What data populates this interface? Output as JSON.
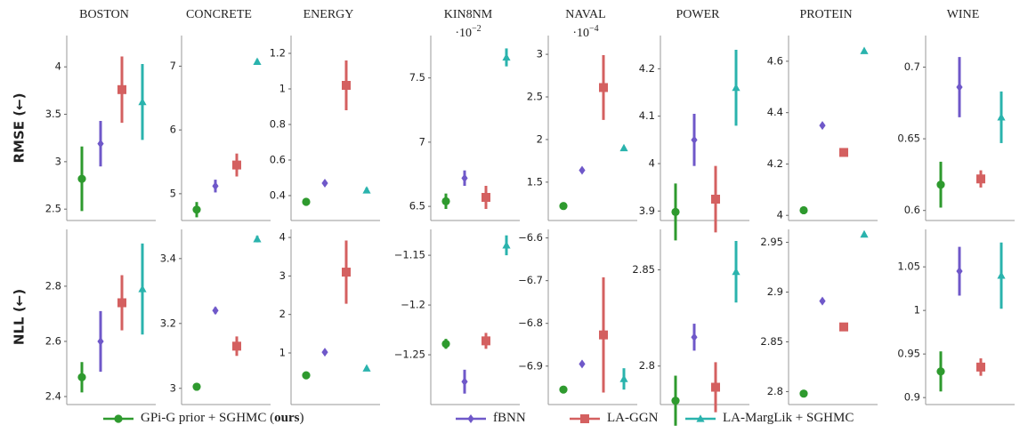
{
  "legend": [
    {
      "name": [
        "GPi-G prior + SGHMC (",
        "ours",
        ")"
      ],
      "bold_part": 1,
      "color": "#2e9a2e",
      "marker": "circle"
    },
    {
      "name": [
        "fBNN"
      ],
      "color": "#6f58c9",
      "marker": "diamond"
    },
    {
      "name": [
        "LA-GGN"
      ],
      "color": "#d46060",
      "marker": "square"
    },
    {
      "name": [
        "LA-MargLik + SGHMC"
      ],
      "color": "#2ab3ad",
      "marker": "triangle"
    }
  ],
  "chart_data": [
    {
      "type": "errorbar",
      "title": "BOSTON",
      "ylabel": "RMSE (←)",
      "values": [
        2.82,
        3.19,
        3.76,
        3.63
      ],
      "errors": [
        0.34,
        0.24,
        0.35,
        0.4
      ],
      "ylim": [
        2.38,
        4.33
      ],
      "yticks": [
        2.5,
        3,
        3.5,
        4
      ]
    },
    {
      "type": "errorbar",
      "title": "CONCRETE",
      "values": [
        4.75,
        5.12,
        5.45,
        7.07
      ],
      "errors": [
        0.12,
        0.1,
        0.18,
        0.04
      ],
      "ylim": [
        4.58,
        7.48
      ],
      "yticks": [
        5,
        6,
        7
      ]
    },
    {
      "type": "errorbar",
      "title": "ENERGY",
      "values": [
        0.365,
        0.47,
        1.02,
        0.43
      ],
      "errors": [
        0.015,
        0.015,
        0.14,
        0.015
      ],
      "ylim": [
        0.26,
        1.3
      ],
      "yticks": [
        0.4,
        0.6,
        0.8,
        1,
        1.2
      ]
    },
    {
      "type": "errorbar",
      "title": "KIN8NM",
      "scale_label": {
        "base": "·10",
        "exponent": "−2"
      },
      "values": [
        6.54,
        6.72,
        6.57,
        7.66
      ],
      "errors": [
        0.06,
        0.06,
        0.09,
        0.07
      ],
      "ylim": [
        6.39,
        7.83
      ],
      "yticks": [
        6.5,
        7,
        7.5
      ]
    },
    {
      "type": "errorbar",
      "title": "NAVAL",
      "scale_label": {
        "base": "·10",
        "exponent": "−4"
      },
      "values": [
        1.22,
        1.64,
        2.61,
        1.9
      ],
      "errors": [
        0.02,
        0.02,
        0.38,
        0.02
      ],
      "ylim": [
        1.05,
        3.22
      ],
      "yticks": [
        1.5,
        2,
        2.5,
        3
      ]
    },
    {
      "type": "errorbar",
      "title": "POWER",
      "values": [
        3.898,
        4.05,
        3.925,
        4.16
      ],
      "errors": [
        0.06,
        0.055,
        0.07,
        0.08
      ],
      "ylim": [
        3.88,
        4.27
      ],
      "yticks": [
        3.9,
        4,
        4.1,
        4.2
      ]
    },
    {
      "type": "errorbar",
      "title": "PROTEIN",
      "values": [
        4.02,
        4.35,
        4.245,
        4.64
      ],
      "errors": [
        0.005,
        0.005,
        0.005,
        0.005
      ],
      "ylim": [
        3.98,
        4.7
      ],
      "yticks": [
        4,
        4.2,
        4.4,
        4.6
      ]
    },
    {
      "type": "errorbar",
      "title": "WINE",
      "values": [
        0.618,
        0.686,
        0.622,
        0.665
      ],
      "errors": [
        0.016,
        0.021,
        0.006,
        0.018
      ],
      "ylim": [
        0.593,
        0.722
      ],
      "yticks": [
        0.6,
        0.65,
        0.7
      ]
    },
    {
      "type": "errorbar",
      "ylabel": "NLL (←)",
      "values": [
        2.47,
        2.6,
        2.74,
        2.79
      ],
      "errors": [
        0.055,
        0.11,
        0.1,
        0.165
      ],
      "ylim": [
        2.371,
        3.006
      ],
      "yticks": [
        2.4,
        2.6,
        2.8
      ]
    },
    {
      "type": "errorbar",
      "values": [
        3.005,
        3.24,
        3.13,
        3.46
      ],
      "errors": [
        0.01,
        0.01,
        0.03,
        0.01
      ],
      "ylim": [
        2.95,
        3.49
      ],
      "yticks": [
        3,
        3.2,
        3.4
      ]
    },
    {
      "type": "errorbar",
      "values": [
        0.42,
        1.02,
        3.1,
        0.6
      ],
      "errors": [
        0.05,
        0.05,
        0.82,
        0.05
      ],
      "ylim": [
        -0.34,
        4.21
      ],
      "yticks": [
        1,
        2,
        3,
        4
      ]
    },
    {
      "type": "errorbar",
      "values": [
        -1.239,
        -1.277,
        -1.236,
        -1.14
      ],
      "errors": [
        0.005,
        0.012,
        0.008,
        0.01
      ],
      "ylim": [
        -1.3,
        -1.124
      ],
      "yticks": [
        {
          "value": -1.25,
          "label": "−1.25"
        },
        {
          "value": -1.2,
          "label": "−1.2"
        },
        {
          "value": -1.15,
          "label": "−1.15"
        }
      ]
    },
    {
      "type": "errorbar",
      "values": [
        -6.955,
        -6.895,
        -6.827,
        -6.93
      ],
      "errors": [
        0.005,
        0.005,
        0.135,
        0.025
      ],
      "ylim": [
        -6.99,
        -6.58
      ],
      "yticks": [
        {
          "value": -6.9,
          "label": "−6.9"
        },
        {
          "value": -6.8,
          "label": "−6.8"
        },
        {
          "value": -6.7,
          "label": "−6.7"
        },
        {
          "value": -6.6,
          "label": "−6.6"
        }
      ]
    },
    {
      "type": "errorbar",
      "values": [
        2.782,
        2.815,
        2.789,
        2.849
      ],
      "errors": [
        0.013,
        0.007,
        0.013,
        0.016
      ],
      "ylim": [
        2.78,
        2.871
      ],
      "yticks": [
        2.8,
        2.85
      ]
    },
    {
      "type": "errorbar",
      "values": [
        2.798,
        2.891,
        2.865,
        2.958
      ],
      "errors": [
        0.001,
        0.001,
        0.001,
        0.001
      ],
      "ylim": [
        2.787,
        2.963
      ],
      "yticks": [
        2.8,
        2.85,
        2.9,
        2.95
      ]
    },
    {
      "type": "errorbar",
      "values": [
        0.93,
        1.045,
        0.935,
        1.04
      ],
      "errors": [
        0.023,
        0.028,
        0.01,
        0.038
      ],
      "ylim": [
        0.892,
        1.093
      ],
      "yticks": [
        0.9,
        0.95,
        1,
        1.05
      ]
    }
  ]
}
